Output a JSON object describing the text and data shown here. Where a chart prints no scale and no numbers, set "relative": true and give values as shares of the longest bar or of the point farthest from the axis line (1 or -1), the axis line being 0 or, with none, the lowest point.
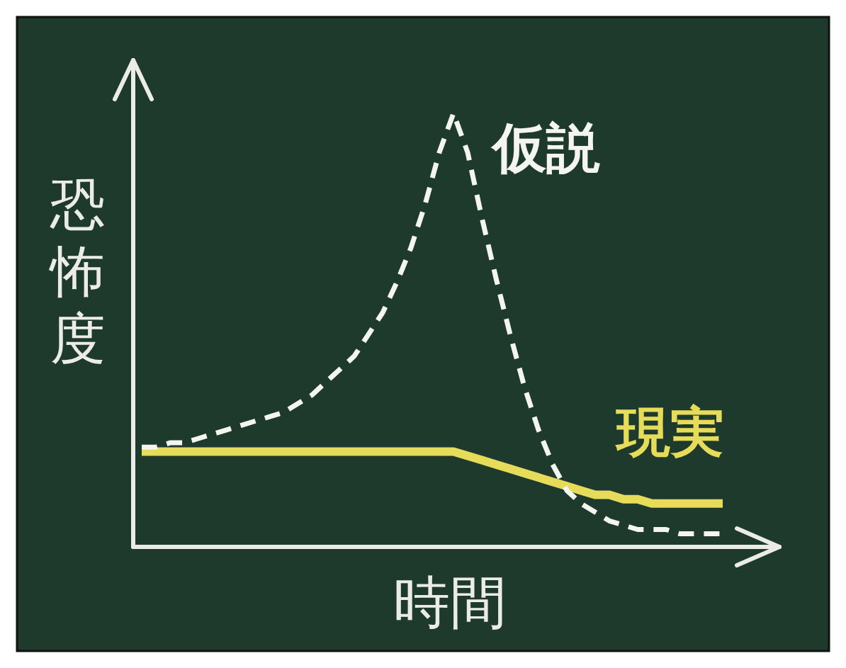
{
  "chart_data": {
    "type": "line",
    "relative": true,
    "xlabel": "時間",
    "ylabel": "恐怖度",
    "categories": [
      null,
      null,
      null,
      null,
      null,
      null,
      null,
      null,
      null,
      null,
      null,
      null,
      null,
      null,
      null,
      null,
      null,
      null,
      null,
      null,
      null,
      null,
      null,
      null,
      null,
      null,
      null,
      null,
      null,
      null,
      null,
      null,
      null,
      null,
      null,
      null,
      null,
      null,
      null,
      null,
      null,
      null
    ],
    "series": [
      {
        "name": "仮説",
        "color": "#f4f4f0",
        "line_style": "dashed",
        "values": [
          0.23,
          0.23,
          0.24,
          0.24,
          0.25,
          0.26,
          0.27,
          0.28,
          0.29,
          0.3,
          0.31,
          0.33,
          0.35,
          0.38,
          0.41,
          0.44,
          0.49,
          0.54,
          0.61,
          0.69,
          0.79,
          0.91,
          1,
          0.91,
          0.76,
          0.62,
          0.49,
          0.37,
          0.27,
          0.19,
          0.13,
          0.1,
          0.08,
          0.06,
          0.05,
          0.04,
          0.04,
          0.04,
          0.03,
          0.03,
          0.03,
          0.03
        ]
      },
      {
        "name": "現実",
        "color": "#e6dc5a",
        "line_style": "solid",
        "values": [
          0.22,
          0.22,
          0.22,
          0.22,
          0.22,
          0.22,
          0.22,
          0.22,
          0.22,
          0.22,
          0.22,
          0.22,
          0.22,
          0.22,
          0.22,
          0.22,
          0.22,
          0.22,
          0.22,
          0.22,
          0.22,
          0.22,
          0.22,
          0.21,
          0.2,
          0.19,
          0.18,
          0.17,
          0.16,
          0.15,
          0.14,
          0.13,
          0.12,
          0.12,
          0.11,
          0.11,
          0.1,
          0.1,
          0.1,
          0.1,
          0.1,
          0.1
        ]
      }
    ]
  }
}
